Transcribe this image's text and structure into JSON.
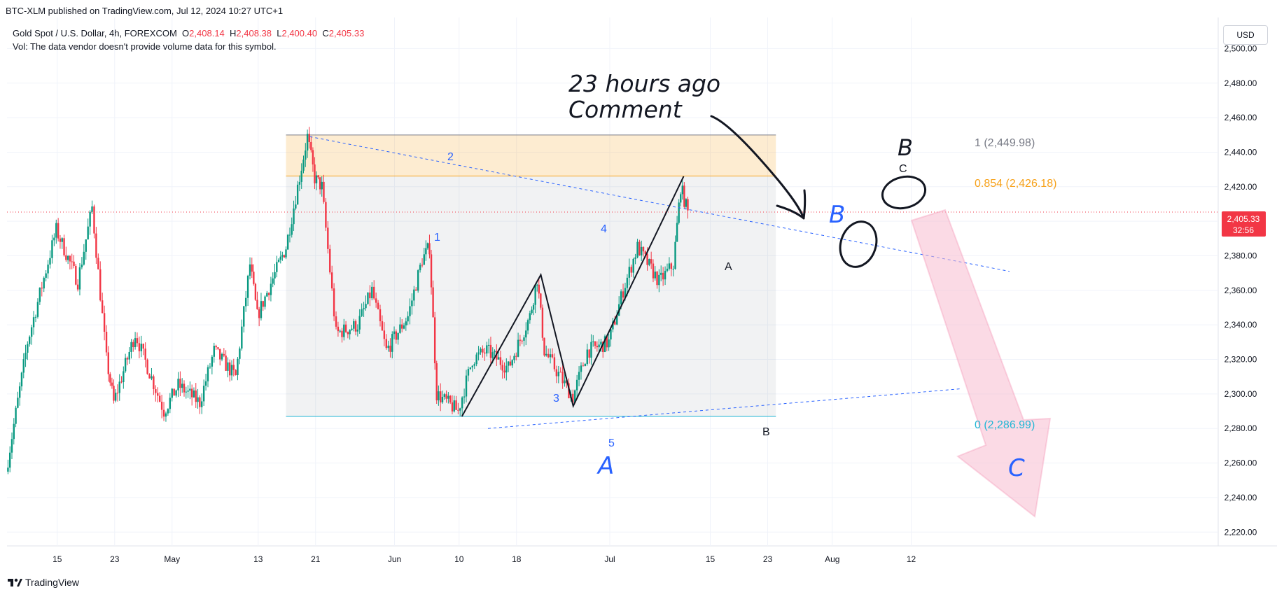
{
  "publish_line": "BTC-XLM published on TradingView.com, Jul 12, 2024 10:27 UTC+1",
  "legend": {
    "symbol": "Gold Spot / U.S. Dollar, 4h, FOREXCOM",
    "open_label": "O",
    "open": "2,408.14",
    "high_label": "H",
    "high": "2,408.38",
    "low_label": "L",
    "low": "2,400.40",
    "close_label": "C",
    "close": "2,405.33",
    "volume_note": "Vol: The data vendor doesn't provide volume data for this symbol."
  },
  "currency_button": "USD",
  "price_tag": {
    "price": "2,405.33",
    "countdown": "32:56"
  },
  "footer": {
    "brand": "TradingView",
    "logo_icon": "tradingview-logo-icon"
  },
  "annotations": {
    "comment_line1": "23 hours ago",
    "comment_line2": "Comment",
    "fib_1": "1 (2,449.98)",
    "fib_0854": "0.854 (2,426.18)",
    "fib_0": "0 (2,286.99)",
    "big_B_top": "B",
    "small_c": "C",
    "blue_B": "B",
    "blue_A": "A",
    "blue_C": "C",
    "wave_1": "1",
    "wave_2": "2",
    "wave_3": "3",
    "wave_4": "4",
    "wave_5": "5",
    "abc_A": "A",
    "abc_B": "B"
  },
  "colors": {
    "up": "#089981",
    "down": "#f23645",
    "fib_orange": "#f7a21b",
    "fib_cyan": "#22b7d5",
    "wave_blue": "#2962ff",
    "arrow_pink": "#f8bbd0"
  },
  "chart_data": {
    "type": "candlestick",
    "symbol": "XAUUSD",
    "timeframe": "4h",
    "x_ticks": [
      "15",
      "23",
      "May",
      "13",
      "21",
      "Jun",
      "10",
      "18",
      "Jul",
      "15",
      "23",
      "Aug",
      "12"
    ],
    "y_ticks": [
      "2,500.00",
      "2,480.00",
      "2,460.00",
      "2,440.00",
      "2,420.00",
      "2,400.00",
      "2,380.00",
      "2,360.00",
      "2,340.00",
      "2,320.00",
      "2,300.00",
      "2,280.00",
      "2,260.00",
      "2,240.00",
      "2,220.00"
    ],
    "y_values": [
      2500,
      2480,
      2460,
      2440,
      2420,
      2400,
      2380,
      2360,
      2340,
      2320,
      2300,
      2280,
      2260,
      2240,
      2220
    ],
    "ylim": [
      2212,
      2518
    ],
    "last_price": 2405.33,
    "fib_levels": [
      {
        "ratio": 1,
        "price": 2449.98
      },
      {
        "ratio": 0.854,
        "price": 2426.18
      },
      {
        "ratio": 0,
        "price": 2286.99
      }
    ],
    "path_anchors": [
      {
        "date": "Apr 8",
        "close": 2255
      },
      {
        "date": "Apr 11",
        "close": 2330
      },
      {
        "date": "Apr 15",
        "close": 2395
      },
      {
        "date": "Apr 18",
        "close": 2365
      },
      {
        "date": "Apr 20",
        "close": 2408
      },
      {
        "date": "Apr 22",
        "close": 2320
      },
      {
        "date": "Apr 23",
        "close": 2295
      },
      {
        "date": "Apr 26",
        "close": 2335
      },
      {
        "date": "Apr 30",
        "close": 2290
      },
      {
        "date": "May 2",
        "close": 2305
      },
      {
        "date": "May 5",
        "close": 2295
      },
      {
        "date": "May 7",
        "close": 2325
      },
      {
        "date": "May 10",
        "close": 2310
      },
      {
        "date": "May 12",
        "close": 2375
      },
      {
        "date": "May 13",
        "close": 2345
      },
      {
        "date": "May 16",
        "close": 2375
      },
      {
        "date": "May 17",
        "close": 2385
      },
      {
        "date": "May 20",
        "close": 2449
      },
      {
        "date": "May 21",
        "close": 2425
      },
      {
        "date": "May 22",
        "close": 2420
      },
      {
        "date": "May 24",
        "close": 2335
      },
      {
        "date": "May 27",
        "close": 2340
      },
      {
        "date": "May 29",
        "close": 2360
      },
      {
        "date": "May 31",
        "close": 2325
      },
      {
        "date": "Jun 3",
        "close": 2345
      },
      {
        "date": "Jun 5",
        "close": 2378
      },
      {
        "date": "Jun 6",
        "close": 2385
      },
      {
        "date": "Jun 7",
        "close": 2300
      },
      {
        "date": "Jun 10",
        "close": 2290
      },
      {
        "date": "Jun 12",
        "close": 2320
      },
      {
        "date": "Jun 14",
        "close": 2325
      },
      {
        "date": "Jun 17",
        "close": 2315
      },
      {
        "date": "Jun 20",
        "close": 2345
      },
      {
        "date": "Jun 21",
        "close": 2367
      },
      {
        "date": "Jun 22",
        "close": 2325
      },
      {
        "date": "Jun 26",
        "close": 2298
      },
      {
        "date": "Jun 28",
        "close": 2325
      },
      {
        "date": "Jul 1",
        "close": 2330
      },
      {
        "date": "Jul 3",
        "close": 2360
      },
      {
        "date": "Jul 5",
        "close": 2385
      },
      {
        "date": "Jul 8",
        "close": 2365
      },
      {
        "date": "Jul 10",
        "close": 2375
      },
      {
        "date": "Jul 11",
        "close": 2420
      },
      {
        "date": "Jul 12",
        "close": 2405
      }
    ]
  }
}
